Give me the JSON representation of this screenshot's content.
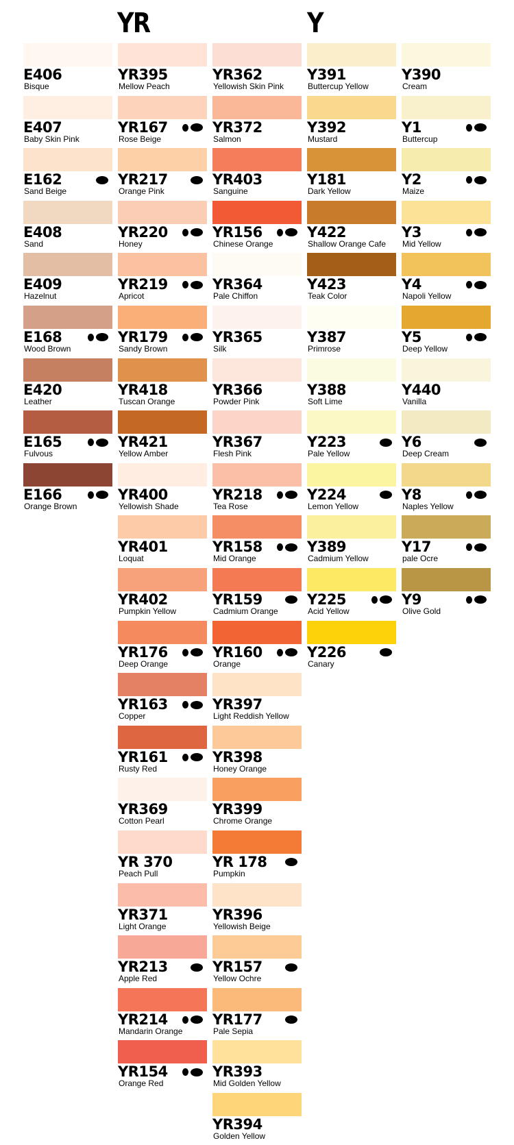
{
  "headers": {
    "yr": "YR",
    "y": "Y"
  },
  "columns": [
    {
      "id": "col-e",
      "items": [
        {
          "code": "E406",
          "name": "Bisque",
          "color": "#FFF7F0",
          "tips": ""
        },
        {
          "code": "E407",
          "name": "Baby Skin Pink",
          "color": "#FEEFE2",
          "tips": ""
        },
        {
          "code": "E162",
          "name": "Sand Beige",
          "color": "#FEE3CC",
          "tips": "one"
        },
        {
          "code": "E408",
          "name": "Sand",
          "color": "#F0D8C1",
          "tips": ""
        },
        {
          "code": "E409",
          "name": "Hazelnut",
          "color": "#E3BEA4",
          "tips": ""
        },
        {
          "code": "E168",
          "name": "Wood Brown",
          "color": "#D5A088",
          "tips": "two"
        },
        {
          "code": "E420",
          "name": "Leather",
          "color": "#C57F61",
          "tips": ""
        },
        {
          "code": "E165",
          "name": "Fulvous",
          "color": "#B55D43",
          "tips": "two"
        },
        {
          "code": "E166",
          "name": "Orange Brown",
          "color": "#8D4533",
          "tips": "two"
        }
      ]
    },
    {
      "id": "col-yr1",
      "items": [
        {
          "code": "YR395",
          "name": "Mellow Peach",
          "color": "#FEE3D6",
          "tips": ""
        },
        {
          "code": "YR167",
          "name": "Rose Beige",
          "color": "#FDD3BC",
          "tips": "two"
        },
        {
          "code": "YR217",
          "name": "Orange Pink",
          "color": "#FDD0A8",
          "tips": "one"
        },
        {
          "code": "YR220",
          "name": "Honey",
          "color": "#FCCDB5",
          "tips": "two"
        },
        {
          "code": "YR219",
          "name": "Apricot",
          "color": "#FBC2A2",
          "tips": "two"
        },
        {
          "code": "YR179",
          "name": "Sandy Brown",
          "color": "#FAAE78",
          "tips": "two"
        },
        {
          "code": "YR418",
          "name": "Tuscan Orange",
          "color": "#E0914C",
          "tips": ""
        },
        {
          "code": "YR421",
          "name": "Yellow Amber",
          "color": "#C46923",
          "tips": ""
        },
        {
          "code": "YR400",
          "name": "Yellowish Shade",
          "color": "#FEEDE0",
          "tips": ""
        },
        {
          "code": "YR401",
          "name": "Loquat",
          "color": "#FDCBA8",
          "tips": ""
        },
        {
          "code": "YR402",
          "name": "Pumpkin Yellow",
          "color": "#F7A27A",
          "tips": ""
        },
        {
          "code": "YR176",
          "name": "Deep Orange",
          "color": "#F68A5F",
          "tips": "two"
        },
        {
          "code": "YR163",
          "name": "Copper",
          "color": "#E48063",
          "tips": "two"
        },
        {
          "code": "YR161",
          "name": "Rusty Red",
          "color": "#DE6742",
          "tips": "two"
        },
        {
          "code": "YR369",
          "name": "Cotton Pearl",
          "color": "#FEF1EA",
          "tips": ""
        },
        {
          "code": "YR 370",
          "name": "Peach Pull",
          "color": "#FDDACB",
          "tips": ""
        },
        {
          "code": "YR371",
          "name": "Light Orange",
          "color": "#FBBDAA",
          "tips": ""
        },
        {
          "code": "YR213",
          "name": "Apple Red",
          "color": "#F8A896",
          "tips": "one"
        },
        {
          "code": "YR214",
          "name": "Mandarin Orange",
          "color": "#F57559",
          "tips": "two"
        },
        {
          "code": "YR154",
          "name": "Orange Red",
          "color": "#F05E4D",
          "tips": "two"
        }
      ]
    },
    {
      "id": "col-yr2",
      "items": [
        {
          "code": "YR362",
          "name": "Yellowish Skin Pink",
          "color": "#FDDED4",
          "tips": ""
        },
        {
          "code": "YR372",
          "name": "Salmon",
          "color": "#FBB898",
          "tips": ""
        },
        {
          "code": "YR403",
          "name": "Sanguine",
          "color": "#F57D5C",
          "tips": ""
        },
        {
          "code": "YR156",
          "name": "Chinese Orange",
          "color": "#F25A35",
          "tips": "two"
        },
        {
          "code": "YR364",
          "name": "Pale Chiffon",
          "color": "#FEFAF4",
          "tips": ""
        },
        {
          "code": "YR365",
          "name": "Silk",
          "color": "#FDF2EE",
          "tips": ""
        },
        {
          "code": "YR366",
          "name": "Powder Pink",
          "color": "#FDE7DD",
          "tips": ""
        },
        {
          "code": "YR367",
          "name": "Flesh Pink",
          "color": "#FDD5C8",
          "tips": ""
        },
        {
          "code": "YR218",
          "name": "Tea Rose",
          "color": "#FABFA6",
          "tips": "two"
        },
        {
          "code": "YR158",
          "name": "Mid Orange",
          "color": "#F58D65",
          "tips": "two"
        },
        {
          "code": "YR159",
          "name": "Cadmium Orange",
          "color": "#F37A53",
          "tips": "one"
        },
        {
          "code": "YR160",
          "name": "Orange",
          "color": "#F36434",
          "tips": "two"
        },
        {
          "code": "YR397",
          "name": "Light Reddish Yellow",
          "color": "#FFE3C7",
          "tips": ""
        },
        {
          "code": "YR398",
          "name": "Honey Orange",
          "color": "#FDC999",
          "tips": ""
        },
        {
          "code": "YR399",
          "name": "Chrome Orange",
          "color": "#F99F5F",
          "tips": ""
        },
        {
          "code": "YR 178",
          "name": "Pumpkin",
          "color": "#F47B35",
          "tips": "one"
        },
        {
          "code": "YR396",
          "name": "Yellowish Beige",
          "color": "#FEE3C9",
          "tips": ""
        },
        {
          "code": "YR157",
          "name": "Yellow Ochre",
          "color": "#FDCB95",
          "tips": "one"
        },
        {
          "code": "YR177",
          "name": "Pale Sepia",
          "color": "#FCBA7A",
          "tips": "one"
        },
        {
          "code": "YR393",
          "name": "Mid Golden Yellow",
          "color": "#FFE19B",
          "tips": ""
        },
        {
          "code": "YR394",
          "name": "Golden  Yellow",
          "color": "#FFD57A",
          "tips": ""
        }
      ]
    },
    {
      "id": "col-y1",
      "items": [
        {
          "code": "Y391",
          "name": "Buttercup Yellow",
          "color": "#FBEFCB",
          "tips": ""
        },
        {
          "code": "Y392",
          "name": "Mustard",
          "color": "#F8D98D",
          "tips": ""
        },
        {
          "code": "Y181",
          "name": "Dark Yellow",
          "color": "#D89237",
          "tips": ""
        },
        {
          "code": "Y422",
          "name": "Shallow Orange Cafe",
          "color": "#C97B2C",
          "tips": ""
        },
        {
          "code": "Y423",
          "name": "Teak Color",
          "color": "#A35E18",
          "tips": ""
        },
        {
          "code": "Y387",
          "name": "Primrose",
          "color": "#FEFEF2",
          "tips": ""
        },
        {
          "code": "Y388",
          "name": "Soft Lime",
          "color": "#FBFBE1",
          "tips": ""
        },
        {
          "code": "Y223",
          "name": "Pale Yellow",
          "color": "#FBF8C5",
          "tips": "one"
        },
        {
          "code": "Y224",
          "name": "Lemon Yellow",
          "color": "#FBF4A0",
          "tips": "one"
        },
        {
          "code": "Y389",
          "name": "Cadmium Yellow",
          "color": "#FBF09E",
          "tips": ""
        },
        {
          "code": "Y225",
          "name": "Acid Yellow",
          "color": "#FDE964",
          "tips": "two"
        },
        {
          "code": "Y226",
          "name": "Canary",
          "color": "#FDD20A",
          "tips": "one"
        }
      ]
    },
    {
      "id": "col-y2",
      "items": [
        {
          "code": "Y390",
          "name": "Cream",
          "color": "#FCF8DE",
          "tips": ""
        },
        {
          "code": "Y1",
          "name": "Buttercup",
          "color": "#F8F1CC",
          "tips": "two"
        },
        {
          "code": "Y2",
          "name": "Maize",
          "color": "#F6ECAD",
          "tips": "two"
        },
        {
          "code": "Y3",
          "name": "Mid Yellow",
          "color": "#FCE296",
          "tips": "two"
        },
        {
          "code": "Y4",
          "name": "Napoli Yellow",
          "color": "#F2C35A",
          "tips": "two"
        },
        {
          "code": "Y5",
          "name": "Deep Yellow",
          "color": "#E4A831",
          "tips": "two"
        },
        {
          "code": "Y440",
          "name": "Vanilla",
          "color": "#F9F4DC",
          "tips": ""
        },
        {
          "code": "Y6",
          "name": "Deep Cream",
          "color": "#F3E9C2",
          "tips": "one"
        },
        {
          "code": "Y8",
          "name": "Naples Yellow",
          "color": "#F3D88C",
          "tips": "two"
        },
        {
          "code": "Y17",
          "name": "pale Ocre",
          "color": "#C9AB59",
          "tips": "two"
        },
        {
          "code": "Y9",
          "name": "Olive Gold",
          "color": "#B99546",
          "tips": "two"
        }
      ]
    }
  ]
}
